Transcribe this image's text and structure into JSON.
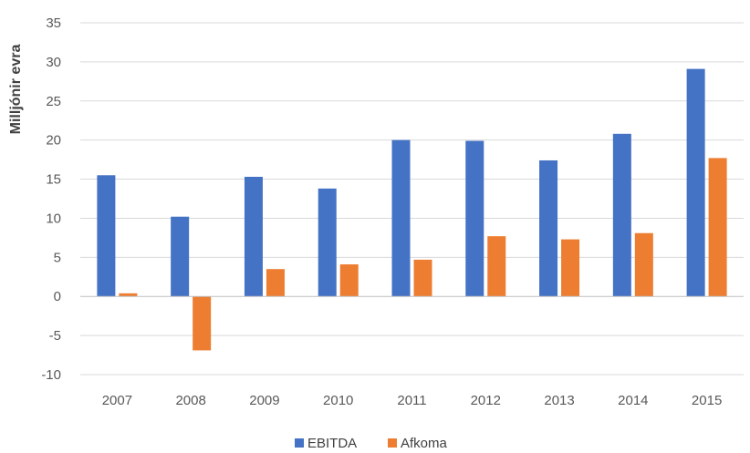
{
  "chart_data": {
    "type": "bar",
    "title": "",
    "xlabel": "",
    "ylabel": "Milljónir evra",
    "ylim": [
      -10,
      35
    ],
    "ytick_step": 5,
    "yticks": [
      "-10",
      "-5",
      "0",
      "5",
      "10",
      "15",
      "20",
      "25",
      "30",
      "35"
    ],
    "grid": "horizontal",
    "legend": "bottom",
    "categories": [
      "2007",
      "2008",
      "2009",
      "2010",
      "2011",
      "2012",
      "2013",
      "2014",
      "2015"
    ],
    "series": [
      {
        "name": "EBITDA",
        "color": "#4472c4",
        "values": [
          15.5,
          10.2,
          15.3,
          13.8,
          20.0,
          19.9,
          17.4,
          20.8,
          29.1
        ]
      },
      {
        "name": "Afkoma",
        "color": "#ed7d31",
        "values": [
          0.4,
          -6.9,
          3.5,
          4.1,
          4.7,
          7.7,
          7.3,
          8.1,
          17.7
        ]
      }
    ]
  }
}
